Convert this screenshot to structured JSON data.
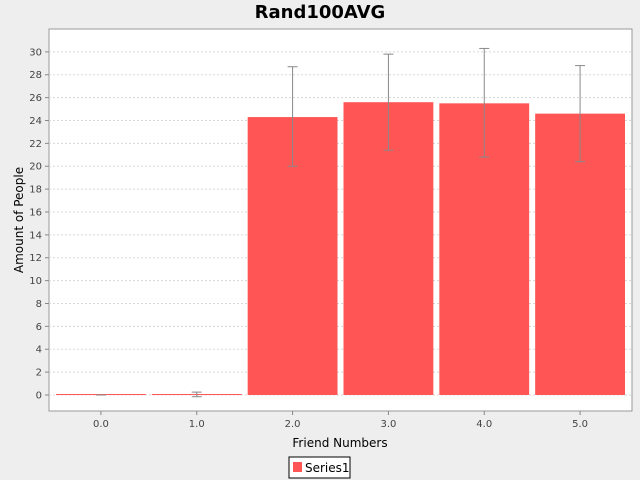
{
  "chart_data": {
    "type": "bar",
    "title": "Rand100AVG",
    "xlabel": "Friend Numbers",
    "ylabel": "Amount of People",
    "categories": [
      "0.0",
      "1.0",
      "2.0",
      "3.0",
      "4.0",
      "5.0"
    ],
    "series": [
      {
        "name": "Series1",
        "color": "#ff5555",
        "values": [
          0.0,
          0.05,
          24.3,
          25.6,
          25.5,
          24.6
        ],
        "error_low": [
          0.0,
          -0.15,
          20.0,
          21.4,
          20.8,
          20.4
        ],
        "error_high": [
          0.0,
          0.25,
          28.7,
          29.8,
          30.3,
          28.8
        ]
      }
    ],
    "ylim": [
      -1.4,
      32.0
    ],
    "yticks": [
      0,
      2,
      4,
      6,
      8,
      10,
      12,
      14,
      16,
      18,
      20,
      22,
      24,
      26,
      28,
      30
    ],
    "grid": true,
    "legend_position": "bottom-center"
  }
}
